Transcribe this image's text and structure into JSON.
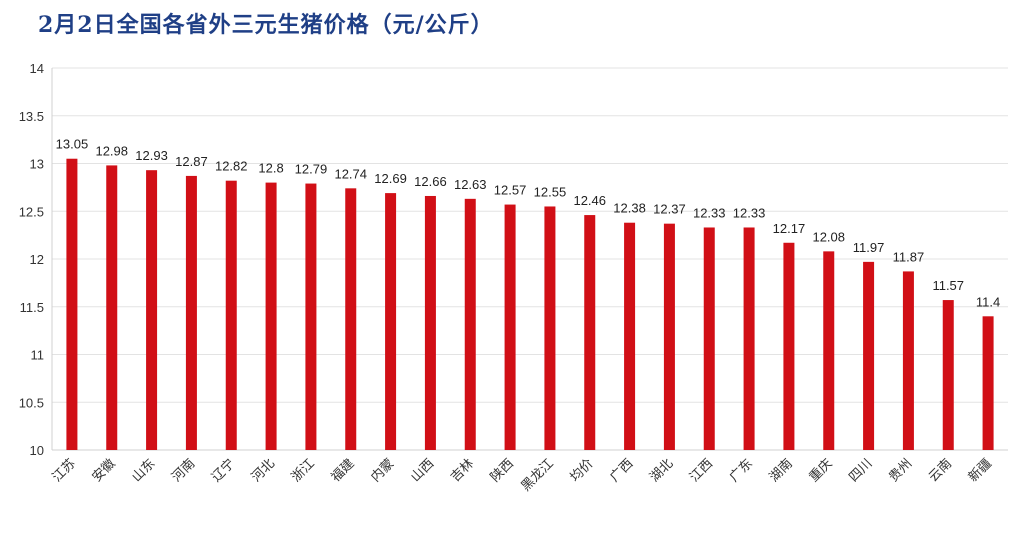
{
  "title": "2月2日全国各省外三元生猪价格（元/公斤）",
  "chart_data": {
    "type": "bar",
    "title": "2月2日全国各省外三元生猪价格（元/公斤）",
    "xlabel": "",
    "ylabel": "",
    "ylim": [
      10,
      14
    ],
    "yticks": [
      10,
      10.5,
      11,
      11.5,
      12,
      12.5,
      13,
      13.5,
      14
    ],
    "grid": true,
    "legend": "none",
    "bar_color": "#d10f16",
    "categories": [
      "江苏",
      "安徽",
      "山东",
      "河南",
      "辽宁",
      "河北",
      "浙江",
      "福建",
      "内蒙",
      "山西",
      "吉林",
      "陕西",
      "黑龙江",
      "均价",
      "广西",
      "湖北",
      "江西",
      "广东",
      "湖南",
      "重庆",
      "四川",
      "贵州",
      "云南",
      "新疆"
    ],
    "values": [
      13.05,
      12.98,
      12.93,
      12.87,
      12.82,
      12.8,
      12.79,
      12.74,
      12.69,
      12.66,
      12.63,
      12.57,
      12.55,
      12.46,
      12.38,
      12.37,
      12.33,
      12.33,
      12.17,
      12.08,
      11.97,
      11.87,
      11.57,
      11.4
    ]
  }
}
